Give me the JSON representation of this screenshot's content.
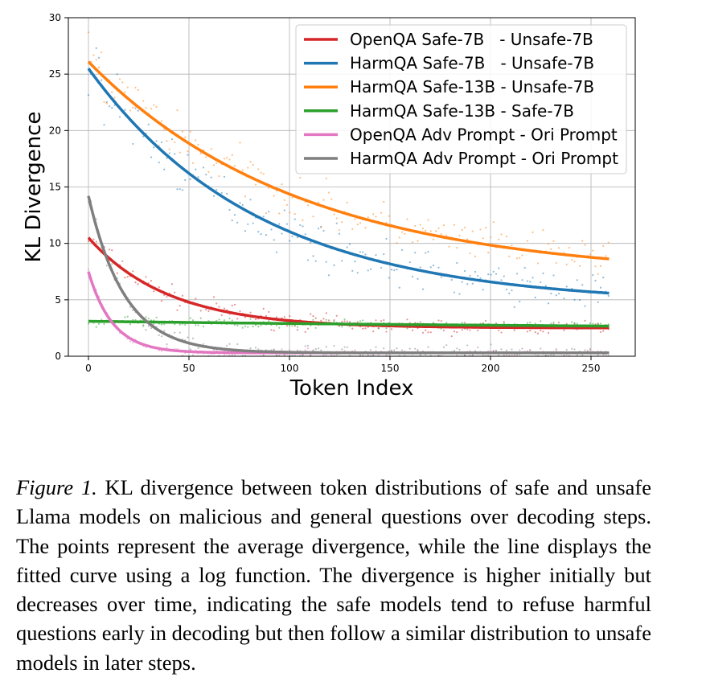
{
  "chart_data": {
    "type": "line",
    "xlabel": "Token Index",
    "ylabel": "KL Divergence",
    "xlim": [
      -10,
      272
    ],
    "ylim": [
      0,
      30
    ],
    "xticks": [
      0,
      50,
      100,
      150,
      200,
      250
    ],
    "yticks": [
      0,
      5,
      10,
      15,
      20,
      25,
      30
    ],
    "grid": true,
    "legend_position": "top-right",
    "x_max_curve": 259,
    "series": [
      {
        "name": "OpenQA Safe-7B   - Unsafe-7B",
        "color": "#d62728",
        "start": 10.5,
        "end": 2.5,
        "tau": 40,
        "noise": 0.9
      },
      {
        "name": "HarmQA Safe-7B   - Unsafe-7B",
        "color": "#1f77b4",
        "start": 25.5,
        "end": 4.6,
        "tau": 85,
        "noise": 2.4
      },
      {
        "name": "HarmQA Safe-13B - Unsafe-7B",
        "color": "#ff7f0e",
        "start": 26.1,
        "end": 7.0,
        "tau": 105,
        "noise": 2.4
      },
      {
        "name": "HarmQA Safe-13B - Safe-7B",
        "color": "#2ca02c",
        "start": 3.1,
        "end": 2.2,
        "tau": 400,
        "noise": 0.45
      },
      {
        "name": "OpenQA Adv Prompt - Ori Prompt",
        "color": "#e377c2",
        "start": 7.5,
        "end": 0.3,
        "tau": 12,
        "noise": 0.35
      },
      {
        "name": "HarmQA Adv Prompt - Ori Prompt",
        "color": "#7f7f7f",
        "start": 14.2,
        "end": 0.3,
        "tau": 18,
        "noise": 0.8
      }
    ]
  },
  "caption": {
    "label": "Figure 1.",
    "text": "KL divergence between token distributions of safe and unsafe Llama models on malicious and general questions over decoding steps. The points represent the average divergence, while the line displays the fitted curve using a log function. The divergence is higher initially but decreases over time, indicating the safe models tend to refuse harmful questions early in decoding but then follow a similar distribution to unsafe models in later steps."
  }
}
